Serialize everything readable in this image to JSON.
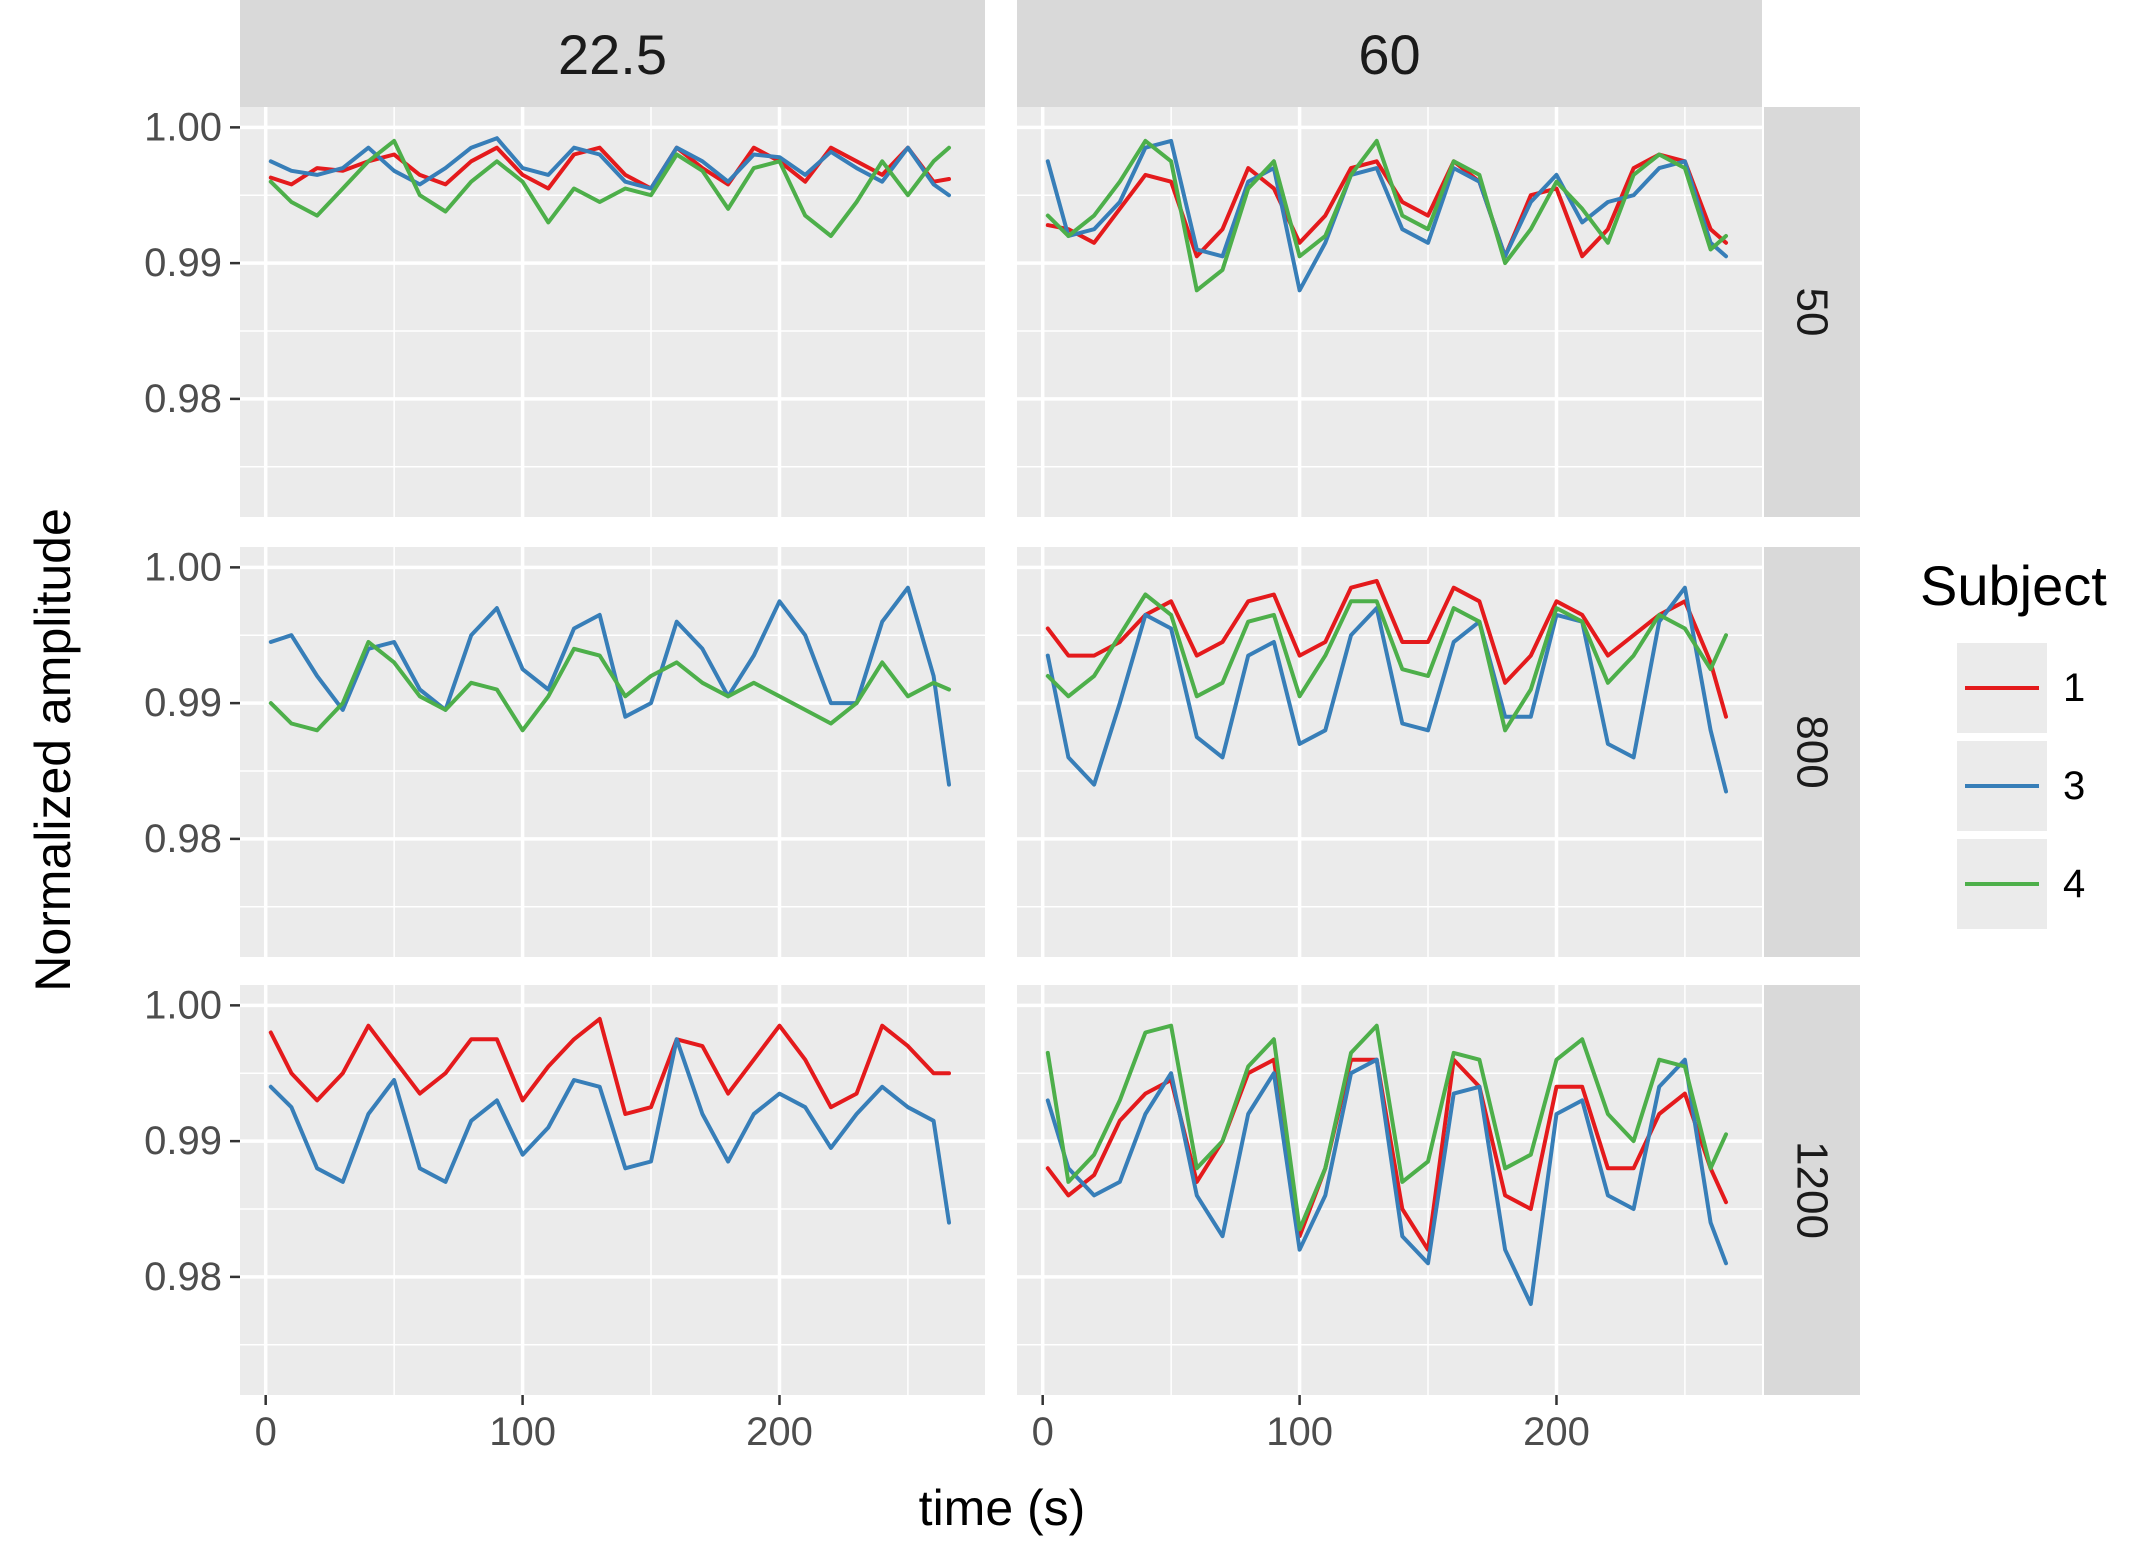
{
  "chart_data": {
    "type": "line",
    "xlabel": "time (s)",
    "ylabel": "Normalized amplitude",
    "xlim": [
      -10,
      280
    ],
    "ylim": [
      0.9713,
      1.0015
    ],
    "x_ticks": [
      0,
      100,
      200
    ],
    "y_ticks": [
      0.98,
      0.99,
      1.0
    ],
    "y_tick_labels": [
      "0.98",
      "0.99",
      "1.00"
    ],
    "x_tick_labels": [
      "0",
      "100",
      "200"
    ],
    "grid": true,
    "columns": [
      "22.5",
      "60"
    ],
    "rows": [
      "50",
      "800",
      "1200"
    ],
    "legend": {
      "title": "Subject",
      "position": "right",
      "entries": [
        {
          "label": "1",
          "color": "#e41a1c"
        },
        {
          "label": "3",
          "color": "#377eb8"
        },
        {
          "label": "4",
          "color": "#4daf4a"
        }
      ]
    },
    "series_colors": {
      "1": "#e41a1c",
      "3": "#377eb8",
      "4": "#4daf4a"
    },
    "x": [
      2,
      10,
      20,
      30,
      40,
      50,
      60,
      70,
      80,
      90,
      100,
      110,
      120,
      130,
      140,
      150,
      160,
      170,
      180,
      190,
      200,
      210,
      220,
      230,
      240,
      250,
      260,
      266
    ],
    "panels": [
      {
        "column": "22.5",
        "row": "50",
        "series": [
          {
            "name": "1",
            "values": [
              0.9963,
              0.9958,
              0.997,
              0.9968,
              0.9975,
              0.998,
              0.9965,
              0.9958,
              0.9975,
              0.9985,
              0.9965,
              0.9955,
              0.998,
              0.9985,
              0.9965,
              0.9955,
              0.9985,
              0.997,
              0.9958,
              0.9985,
              0.9975,
              0.996,
              0.9985,
              0.9975,
              0.9965,
              0.9985,
              0.996,
              0.9962
            ]
          },
          {
            "name": "3",
            "values": [
              0.9975,
              0.9968,
              0.9965,
              0.997,
              0.9985,
              0.9968,
              0.9958,
              0.997,
              0.9985,
              0.9992,
              0.997,
              0.9965,
              0.9985,
              0.998,
              0.996,
              0.9955,
              0.9985,
              0.9975,
              0.996,
              0.998,
              0.9978,
              0.9965,
              0.9982,
              0.997,
              0.996,
              0.9985,
              0.9958,
              0.995
            ]
          },
          {
            "name": "4",
            "values": [
              0.996,
              0.9945,
              0.9935,
              0.9955,
              0.9975,
              0.999,
              0.995,
              0.9938,
              0.996,
              0.9975,
              0.996,
              0.993,
              0.9955,
              0.9945,
              0.9955,
              0.995,
              0.998,
              0.9968,
              0.994,
              0.997,
              0.9975,
              0.9935,
              0.992,
              0.9945,
              0.9975,
              0.995,
              0.9975,
              0.9985
            ]
          }
        ]
      },
      {
        "column": "60",
        "row": "50",
        "series": [
          {
            "name": "1",
            "values": [
              0.9928,
              0.9925,
              0.9915,
              0.994,
              0.9965,
              0.996,
              0.9905,
              0.9925,
              0.997,
              0.9955,
              0.9915,
              0.9935,
              0.997,
              0.9975,
              0.9945,
              0.9935,
              0.9975,
              0.996,
              0.9905,
              0.995,
              0.9955,
              0.9905,
              0.9925,
              0.997,
              0.998,
              0.9975,
              0.9925,
              0.9915
            ]
          },
          {
            "name": "3",
            "values": [
              0.9975,
              0.992,
              0.9925,
              0.9945,
              0.9985,
              0.999,
              0.991,
              0.9905,
              0.996,
              0.997,
              0.988,
              0.9915,
              0.9965,
              0.997,
              0.9925,
              0.9915,
              0.997,
              0.996,
              0.9905,
              0.9945,
              0.9965,
              0.993,
              0.9945,
              0.995,
              0.997,
              0.9975,
              0.9915,
              0.9905
            ]
          },
          {
            "name": "4",
            "values": [
              0.9935,
              0.992,
              0.9935,
              0.996,
              0.999,
              0.9975,
              0.988,
              0.9895,
              0.9955,
              0.9975,
              0.9905,
              0.992,
              0.9965,
              0.999,
              0.9935,
              0.9925,
              0.9975,
              0.9965,
              0.99,
              0.9925,
              0.996,
              0.994,
              0.9915,
              0.9965,
              0.998,
              0.997,
              0.991,
              0.992
            ]
          }
        ]
      },
      {
        "column": "22.5",
        "row": "800",
        "series": [
          {
            "name": "3",
            "values": [
              0.9945,
              0.995,
              0.992,
              0.9895,
              0.994,
              0.9945,
              0.991,
              0.9895,
              0.995,
              0.997,
              0.9925,
              0.991,
              0.9955,
              0.9965,
              0.989,
              0.99,
              0.996,
              0.994,
              0.9905,
              0.9935,
              0.9975,
              0.995,
              0.99,
              0.99,
              0.996,
              0.9985,
              0.992,
              0.984
            ]
          },
          {
            "name": "4",
            "values": [
              0.99,
              0.9885,
              0.988,
              0.99,
              0.9945,
              0.993,
              0.9905,
              0.9895,
              0.9915,
              0.991,
              0.988,
              0.9905,
              0.994,
              0.9935,
              0.9905,
              0.992,
              0.993,
              0.9915,
              0.9905,
              0.9915,
              0.9905,
              0.9895,
              0.9885,
              0.99,
              0.993,
              0.9905,
              0.9915,
              0.991
            ]
          }
        ]
      },
      {
        "column": "60",
        "row": "800",
        "series": [
          {
            "name": "1",
            "values": [
              0.9955,
              0.9935,
              0.9935,
              0.9945,
              0.9965,
              0.9975,
              0.9935,
              0.9945,
              0.9975,
              0.998,
              0.9935,
              0.9945,
              0.9985,
              0.999,
              0.9945,
              0.9945,
              0.9985,
              0.9975,
              0.9915,
              0.9935,
              0.9975,
              0.9965,
              0.9935,
              0.995,
              0.9965,
              0.9975,
              0.993,
              0.989
            ]
          },
          {
            "name": "3",
            "values": [
              0.9935,
              0.986,
              0.984,
              0.99,
              0.9965,
              0.9955,
              0.9875,
              0.986,
              0.9935,
              0.9945,
              0.987,
              0.988,
              0.995,
              0.997,
              0.9885,
              0.988,
              0.9945,
              0.996,
              0.989,
              0.989,
              0.9965,
              0.996,
              0.987,
              0.986,
              0.996,
              0.9985,
              0.988,
              0.9835
            ]
          },
          {
            "name": "4",
            "values": [
              0.992,
              0.9905,
              0.992,
              0.995,
              0.998,
              0.9965,
              0.9905,
              0.9915,
              0.996,
              0.9965,
              0.9905,
              0.9935,
              0.9975,
              0.9975,
              0.9925,
              0.992,
              0.997,
              0.996,
              0.988,
              0.991,
              0.997,
              0.996,
              0.9915,
              0.9935,
              0.9965,
              0.9955,
              0.9925,
              0.995
            ]
          }
        ]
      },
      {
        "column": "22.5",
        "row": "1200",
        "series": [
          {
            "name": "1",
            "values": [
              0.998,
              0.995,
              0.993,
              0.995,
              0.9985,
              0.996,
              0.9935,
              0.995,
              0.9975,
              0.9975,
              0.993,
              0.9955,
              0.9975,
              0.999,
              0.992,
              0.9925,
              0.9975,
              0.997,
              0.9935,
              0.996,
              0.9985,
              0.996,
              0.9925,
              0.9935,
              0.9985,
              0.997,
              0.995,
              0.995
            ]
          },
          {
            "name": "3",
            "values": [
              0.994,
              0.9925,
              0.988,
              0.987,
              0.992,
              0.9945,
              0.988,
              0.987,
              0.9915,
              0.993,
              0.989,
              0.991,
              0.9945,
              0.994,
              0.988,
              0.9885,
              0.9975,
              0.992,
              0.9885,
              0.992,
              0.9935,
              0.9925,
              0.9895,
              0.992,
              0.994,
              0.9925,
              0.9915,
              0.984
            ]
          }
        ]
      },
      {
        "column": "60",
        "row": "1200",
        "series": [
          {
            "name": "1",
            "values": [
              0.988,
              0.986,
              0.9875,
              0.9915,
              0.9935,
              0.9945,
              0.987,
              0.99,
              0.995,
              0.996,
              0.983,
              0.988,
              0.996,
              0.996,
              0.985,
              0.982,
              0.996,
              0.994,
              0.986,
              0.985,
              0.994,
              0.994,
              0.988,
              0.988,
              0.992,
              0.9935,
              0.988,
              0.9855
            ]
          },
          {
            "name": "3",
            "values": [
              0.993,
              0.988,
              0.986,
              0.987,
              0.992,
              0.995,
              0.986,
              0.983,
              0.992,
              0.995,
              0.982,
              0.986,
              0.995,
              0.996,
              0.983,
              0.981,
              0.9935,
              0.994,
              0.982,
              0.978,
              0.992,
              0.993,
              0.986,
              0.985,
              0.994,
              0.996,
              0.984,
              0.981
            ]
          },
          {
            "name": "4",
            "values": [
              0.9965,
              0.987,
              0.989,
              0.993,
              0.998,
              0.9985,
              0.988,
              0.99,
              0.9955,
              0.9975,
              0.9835,
              0.988,
              0.9965,
              0.9985,
              0.987,
              0.9885,
              0.9965,
              0.996,
              0.988,
              0.989,
              0.996,
              0.9975,
              0.992,
              0.99,
              0.996,
              0.9955,
              0.988,
              0.9905
            ]
          }
        ]
      }
    ]
  }
}
